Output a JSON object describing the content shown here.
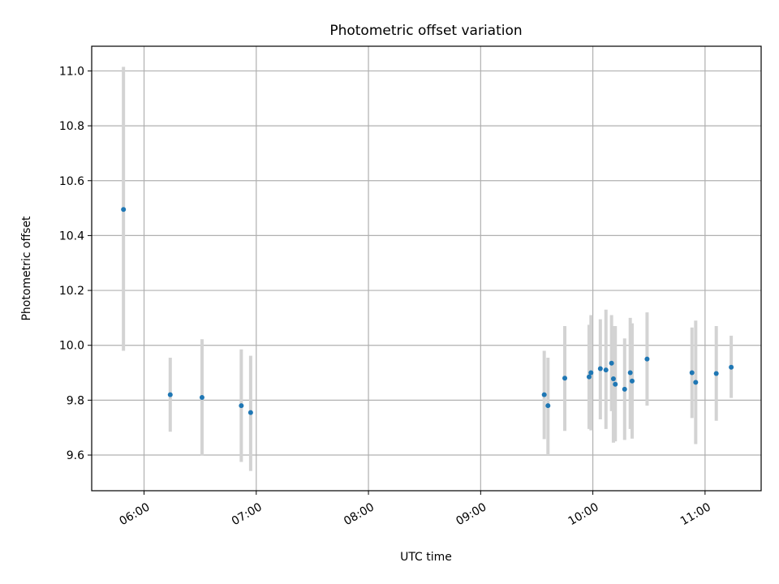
{
  "chart_data": {
    "type": "scatter",
    "title": "Photometric offset variation",
    "xlabel": "UTC time",
    "ylabel": "Photometric offset",
    "xlim": [
      "05:32",
      "11:30"
    ],
    "ylim": [
      9.47,
      11.09
    ],
    "x_ticks": [
      "06:00",
      "07:00",
      "08:00",
      "09:00",
      "10:00",
      "11:00"
    ],
    "y_ticks": [
      "9.6",
      "9.8",
      "10.0",
      "10.2",
      "10.4",
      "10.6",
      "10.8",
      "11.0"
    ],
    "grid": true,
    "colors": {
      "marker": "#1f77b4",
      "errorbar": "#d3d3d3"
    },
    "points": [
      {
        "x": "05:49",
        "y": 10.495,
        "ylow": 9.98,
        "yhigh": 11.015
      },
      {
        "x": "06:14",
        "y": 9.82,
        "ylow": 9.685,
        "yhigh": 9.955
      },
      {
        "x": "06:31",
        "y": 9.81,
        "ylow": 9.598,
        "yhigh": 10.022
      },
      {
        "x": "06:52",
        "y": 9.78,
        "ylow": 9.575,
        "yhigh": 9.985
      },
      {
        "x": "06:57",
        "y": 9.755,
        "ylow": 9.542,
        "yhigh": 9.962
      },
      {
        "x": "09:34",
        "y": 9.82,
        "ylow": 9.658,
        "yhigh": 9.98
      },
      {
        "x": "09:36",
        "y": 9.78,
        "ylow": 9.6,
        "yhigh": 9.955
      },
      {
        "x": "09:45",
        "y": 9.88,
        "ylow": 9.688,
        "yhigh": 10.07
      },
      {
        "x": "09:58",
        "y": 9.885,
        "ylow": 9.695,
        "yhigh": 10.075
      },
      {
        "x": "09:59",
        "y": 9.9,
        "ylow": 9.69,
        "yhigh": 10.11
      },
      {
        "x": "10:04",
        "y": 9.915,
        "ylow": 9.73,
        "yhigh": 10.095
      },
      {
        "x": "10:07",
        "y": 9.91,
        "ylow": 9.695,
        "yhigh": 10.13
      },
      {
        "x": "10:10",
        "y": 9.935,
        "ylow": 9.76,
        "yhigh": 10.11
      },
      {
        "x": "10:11",
        "y": 9.878,
        "ylow": 9.645,
        "yhigh": 10.07
      },
      {
        "x": "10:12",
        "y": 9.858,
        "ylow": 9.65,
        "yhigh": 10.07
      },
      {
        "x": "10:17",
        "y": 9.84,
        "ylow": 9.655,
        "yhigh": 10.025
      },
      {
        "x": "10:20",
        "y": 9.9,
        "ylow": 9.695,
        "yhigh": 10.1
      },
      {
        "x": "10:21",
        "y": 9.87,
        "ylow": 9.66,
        "yhigh": 10.08
      },
      {
        "x": "10:29",
        "y": 9.95,
        "ylow": 9.78,
        "yhigh": 10.12
      },
      {
        "x": "10:53",
        "y": 9.9,
        "ylow": 9.735,
        "yhigh": 10.065
      },
      {
        "x": "10:55",
        "y": 9.865,
        "ylow": 9.64,
        "yhigh": 10.09
      },
      {
        "x": "11:06",
        "y": 9.897,
        "ylow": 9.725,
        "yhigh": 10.07
      },
      {
        "x": "11:14",
        "y": 9.92,
        "ylow": 9.808,
        "yhigh": 10.035
      }
    ]
  }
}
